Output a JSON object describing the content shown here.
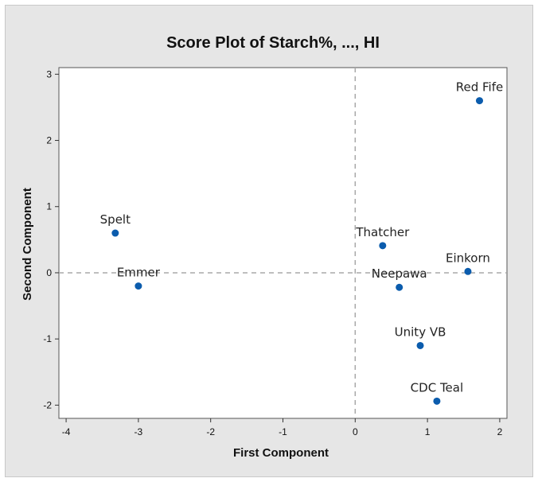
{
  "chart_data": {
    "type": "scatter",
    "title": "Score Plot of Starch%, ..., HI",
    "xlabel": "First Component",
    "ylabel": "Second Component",
    "xlim": [
      -4.1,
      2.1
    ],
    "ylim": [
      -2.2,
      3.1
    ],
    "xticks": [
      -4,
      -3,
      -2,
      -1,
      0,
      1,
      2
    ],
    "yticks": [
      -2,
      -1,
      0,
      1,
      2,
      3
    ],
    "reference_lines": {
      "x": 0,
      "y": 0,
      "style": "dashed"
    },
    "grid": false,
    "points": [
      {
        "label": "Red Fife",
        "x": 1.72,
        "y": 2.6
      },
      {
        "label": "Spelt",
        "x": -3.32,
        "y": 0.6
      },
      {
        "label": "Thatcher",
        "x": 0.38,
        "y": 0.41
      },
      {
        "label": "Einkorn",
        "x": 1.56,
        "y": 0.02
      },
      {
        "label": "Emmer",
        "x": -3.0,
        "y": -0.2
      },
      {
        "label": "Neepawa",
        "x": 0.61,
        "y": -0.22
      },
      {
        "label": "Unity VB",
        "x": 0.9,
        "y": -1.1
      },
      {
        "label": "CDC Teal",
        "x": 1.13,
        "y": -1.94
      }
    ],
    "colors": {
      "point": "#0b5cad",
      "reference_line": "#a8a8a8",
      "background": "#e6e6e6",
      "plot_area": "#ffffff"
    }
  }
}
